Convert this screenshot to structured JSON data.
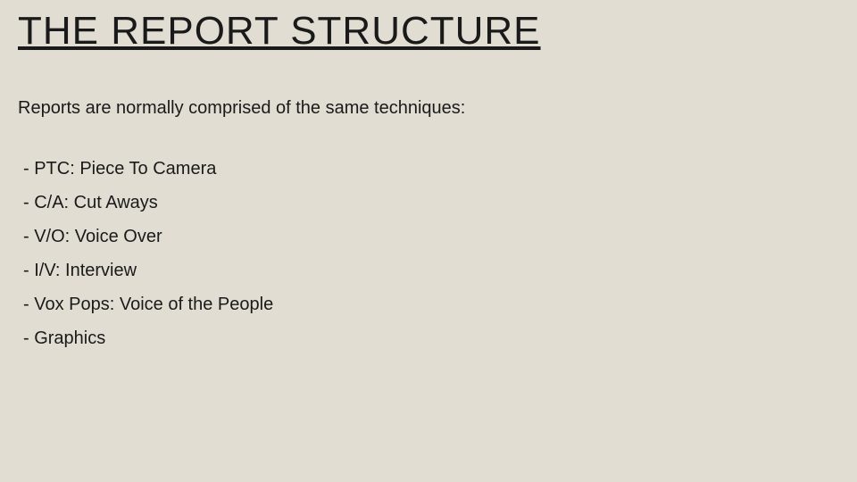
{
  "slide": {
    "background_color": "#e2ddd2",
    "text_color": "#1a1a1a",
    "font_family": "Arial, Helvetica, sans-serif",
    "title": {
      "text": "THE REPORT STRUCTURE",
      "fontsize": 44,
      "underline": true,
      "letter_spacing": 1
    },
    "intro": {
      "text": "Reports are normally comprised of the same techniques:",
      "fontsize": 20
    },
    "list": {
      "fontsize": 20,
      "items": [
        "- PTC: Piece To Camera",
        "- C/A: Cut Aways",
        "- V/O: Voice Over",
        "- I/V: Interview",
        "- Vox Pops: Voice of the People",
        "- Graphics"
      ]
    }
  }
}
